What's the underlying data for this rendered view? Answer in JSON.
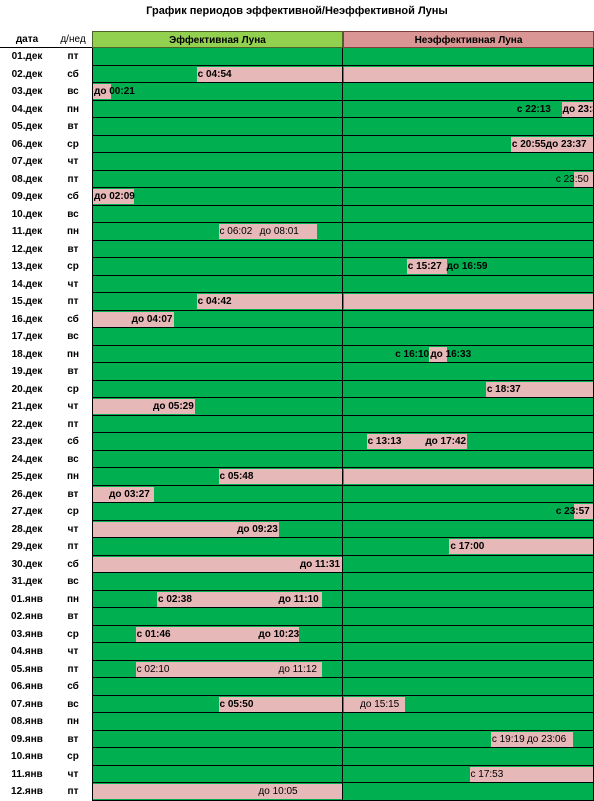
{
  "title": "График  периодов эффективной/Неэффективной Луны",
  "columns": {
    "date": "дата",
    "dow": "д/нед",
    "effective": "Эффективная Луна",
    "ineffective": "Неэффективная Луна"
  },
  "colors": {
    "green": "#00b050",
    "pink": "#e6b8b7",
    "header_green": "#92d050",
    "header_pink": "#da9694"
  },
  "rows": [
    {
      "date": "01.дек",
      "dow": "пт",
      "segments": [],
      "labels": []
    },
    {
      "date": "02.дек",
      "dow": "сб",
      "segments": [
        {
          "from": 0.413,
          "to": 2
        }
      ],
      "labels": [
        {
          "text": "с 04:54",
          "at": 0.413,
          "bold": true
        }
      ]
    },
    {
      "date": "03.дек",
      "dow": "вс",
      "segments": [
        {
          "from": 0,
          "to": 0.08
        }
      ],
      "labels": [
        {
          "text": "до 00:21",
          "at": 0.0,
          "bold": true
        }
      ]
    },
    {
      "date": "04.дек",
      "dow": "пн",
      "segments": [
        {
          "from": 1.867,
          "to": 2
        }
      ],
      "labels": [
        {
          "text": "с 22:13",
          "at": 1.685,
          "bold": true
        },
        {
          "text": "до 23:37",
          "at": 1.867,
          "bold": true
        }
      ]
    },
    {
      "date": "05.дек",
      "dow": "вт",
      "segments": [],
      "labels": []
    },
    {
      "date": "06.дек",
      "dow": "ср",
      "segments": [
        {
          "from": 1.665,
          "to": 2
        }
      ],
      "labels": [
        {
          "text": "с 20:55",
          "at": 1.665,
          "bold": true
        },
        {
          "text": "до 23:37",
          "at": 1.8,
          "bold": true
        }
      ]
    },
    {
      "date": "07.дек",
      "dow": "чт",
      "segments": [],
      "labels": []
    },
    {
      "date": "08.дек",
      "dow": "пт",
      "segments": [
        {
          "from": 1.916,
          "to": 2
        }
      ],
      "labels": [
        {
          "text": "с 23:50",
          "at": 1.84,
          "bold": false
        }
      ]
    },
    {
      "date": "09.дек",
      "dow": "сб",
      "segments": [
        {
          "from": 0,
          "to": 0.17
        }
      ],
      "labels": [
        {
          "text": "до 02:09",
          "at": 0.0,
          "bold": true
        }
      ]
    },
    {
      "date": "10.дек",
      "dow": "вс",
      "segments": [],
      "labels": []
    },
    {
      "date": "11.дек",
      "dow": "пн",
      "segments": [
        {
          "from": 0.5,
          "to": 0.9
        }
      ],
      "labels": [
        {
          "text": "с 06:02",
          "at": 0.5,
          "bold": false
        },
        {
          "text": "до 08:01",
          "at": 0.66,
          "bold": false
        }
      ]
    },
    {
      "date": "12.дек",
      "dow": "вт",
      "segments": [],
      "labels": []
    },
    {
      "date": "13.дек",
      "dow": "ср",
      "segments": [
        {
          "from": 1.25,
          "to": 1.42
        }
      ],
      "labels": [
        {
          "text": "с 15:27",
          "at": 1.25,
          "bold": true
        },
        {
          "text": "до 16:59",
          "at": 1.405,
          "bold": true
        }
      ]
    },
    {
      "date": "14.дек",
      "dow": "чт",
      "segments": [],
      "labels": []
    },
    {
      "date": "15.дек",
      "dow": "пт",
      "segments": [
        {
          "from": 0.413,
          "to": 2
        }
      ],
      "labels": [
        {
          "text": "с 04:42",
          "at": 0.413,
          "bold": true
        }
      ]
    },
    {
      "date": "16.дек",
      "dow": "сб",
      "segments": [
        {
          "from": 0,
          "to": 0.33
        }
      ],
      "labels": [
        {
          "text": "до 04:07",
          "at": 0.15,
          "bold": true
        }
      ]
    },
    {
      "date": "17.дек",
      "dow": "вс",
      "segments": [],
      "labels": []
    },
    {
      "date": "18.дек",
      "dow": "пн",
      "segments": [
        {
          "from": 1.34,
          "to": 1.42
        }
      ],
      "labels": [
        {
          "text": "с 16:10",
          "at": 1.2,
          "bold": true
        },
        {
          "text": "до 16:33",
          "at": 1.34,
          "bold": true
        }
      ]
    },
    {
      "date": "19.дек",
      "dow": "вт",
      "segments": [],
      "labels": []
    },
    {
      "date": "20.дек",
      "dow": "ср",
      "segments": [
        {
          "from": 1.565,
          "to": 2
        }
      ],
      "labels": [
        {
          "text": "с 18:37",
          "at": 1.565,
          "bold": true
        }
      ]
    },
    {
      "date": "21.дек",
      "dow": "чт",
      "segments": [
        {
          "from": 0,
          "to": 0.415
        }
      ],
      "labels": [
        {
          "text": "до 05:29",
          "at": 0.235,
          "bold": true
        }
      ]
    },
    {
      "date": "22.дек",
      "dow": "пт",
      "segments": [],
      "labels": []
    },
    {
      "date": "23.дек",
      "dow": "сб",
      "segments": [
        {
          "from": 1.09,
          "to": 1.5
        }
      ],
      "labels": [
        {
          "text": "с 13:13",
          "at": 1.09,
          "bold": true
        },
        {
          "text": "до 17:42",
          "at": 1.32,
          "bold": true
        }
      ]
    },
    {
      "date": "24.дек",
      "dow": "вс",
      "segments": [],
      "labels": []
    },
    {
      "date": "25.дек",
      "dow": "пн",
      "segments": [
        {
          "from": 0.5,
          "to": 2
        }
      ],
      "labels": [
        {
          "text": "с 05:48",
          "at": 0.5,
          "bold": true
        }
      ]
    },
    {
      "date": "26.дек",
      "dow": "вт",
      "segments": [
        {
          "from": 0,
          "to": 0.25
        }
      ],
      "labels": [
        {
          "text": "до 03:27",
          "at": 0.06,
          "bold": true
        }
      ]
    },
    {
      "date": "27.дек",
      "dow": "ср",
      "segments": [
        {
          "from": 1.916,
          "to": 2
        }
      ],
      "labels": [
        {
          "text": "с 23:57",
          "at": 1.84,
          "bold": true
        }
      ]
    },
    {
      "date": "28.дек",
      "dow": "чт",
      "segments": [
        {
          "from": 0,
          "to": 0.75
        }
      ],
      "labels": [
        {
          "text": "до 09:23",
          "at": 0.57,
          "bold": true
        }
      ]
    },
    {
      "date": "29.дек",
      "dow": "пт",
      "segments": [
        {
          "from": 1.42,
          "to": 2
        }
      ],
      "labels": [
        {
          "text": "с 17:00",
          "at": 1.42,
          "bold": true
        }
      ]
    },
    {
      "date": "30.дек",
      "dow": "сб",
      "segments": [
        {
          "from": 0,
          "to": 1
        }
      ],
      "labels": [
        {
          "text": "до 11:31",
          "at": 0.82,
          "bold": true
        }
      ]
    },
    {
      "date": "31.дек",
      "dow": "вс",
      "segments": [],
      "labels": []
    },
    {
      "date": "01.янв",
      "dow": "пн",
      "segments": [
        {
          "from": 0.255,
          "to": 0.92
        }
      ],
      "labels": [
        {
          "text": "с 02:38",
          "at": 0.255,
          "bold": true
        },
        {
          "text": "до 11:10",
          "at": 0.735,
          "bold": true
        }
      ]
    },
    {
      "date": "02.янв",
      "dow": "вт",
      "segments": [],
      "labels": []
    },
    {
      "date": "03.янв",
      "dow": "ср",
      "segments": [
        {
          "from": 0.17,
          "to": 0.83
        }
      ],
      "labels": [
        {
          "text": "с 01:46",
          "at": 0.17,
          "bold": true
        },
        {
          "text": "до 10:23",
          "at": 0.655,
          "bold": true
        }
      ]
    },
    {
      "date": "04.янв",
      "dow": "чт",
      "segments": [],
      "labels": []
    },
    {
      "date": "05.янв",
      "dow": "пт",
      "segments": [
        {
          "from": 0.17,
          "to": 0.92
        }
      ],
      "labels": [
        {
          "text": "с 02:10",
          "at": 0.17,
          "bold": false
        },
        {
          "text": "до 11:12",
          "at": 0.735,
          "bold": false
        }
      ]
    },
    {
      "date": "06.янв",
      "dow": "сб",
      "segments": [],
      "labels": []
    },
    {
      "date": "07.янв",
      "dow": "вс",
      "segments": [
        {
          "from": 0.5,
          "to": 1.25
        }
      ],
      "labels": [
        {
          "text": "с 05:50",
          "at": 0.5,
          "bold": true
        },
        {
          "text": "до 15:15",
          "at": 1.06,
          "bold": false
        }
      ]
    },
    {
      "date": "08.янв",
      "dow": "пн",
      "segments": [],
      "labels": []
    },
    {
      "date": "09.янв",
      "dow": "вт",
      "segments": [
        {
          "from": 1.585,
          "to": 1.92
        }
      ],
      "labels": [
        {
          "text": "с 19:19",
          "at": 1.585,
          "bold": false
        },
        {
          "text": "до 23:06",
          "at": 1.725,
          "bold": false
        }
      ]
    },
    {
      "date": "10.янв",
      "dow": "ср",
      "segments": [],
      "labels": []
    },
    {
      "date": "11.янв",
      "dow": "чт",
      "segments": [
        {
          "from": 1.5,
          "to": 2
        }
      ],
      "labels": [
        {
          "text": "с 17:53",
          "at": 1.5,
          "bold": false
        }
      ]
    },
    {
      "date": "12.янв",
      "dow": "пт",
      "segments": [
        {
          "from": 0,
          "to": 1
        }
      ],
      "labels": [
        {
          "text": "до 10:05",
          "at": 0.655,
          "bold": false
        }
      ]
    }
  ]
}
